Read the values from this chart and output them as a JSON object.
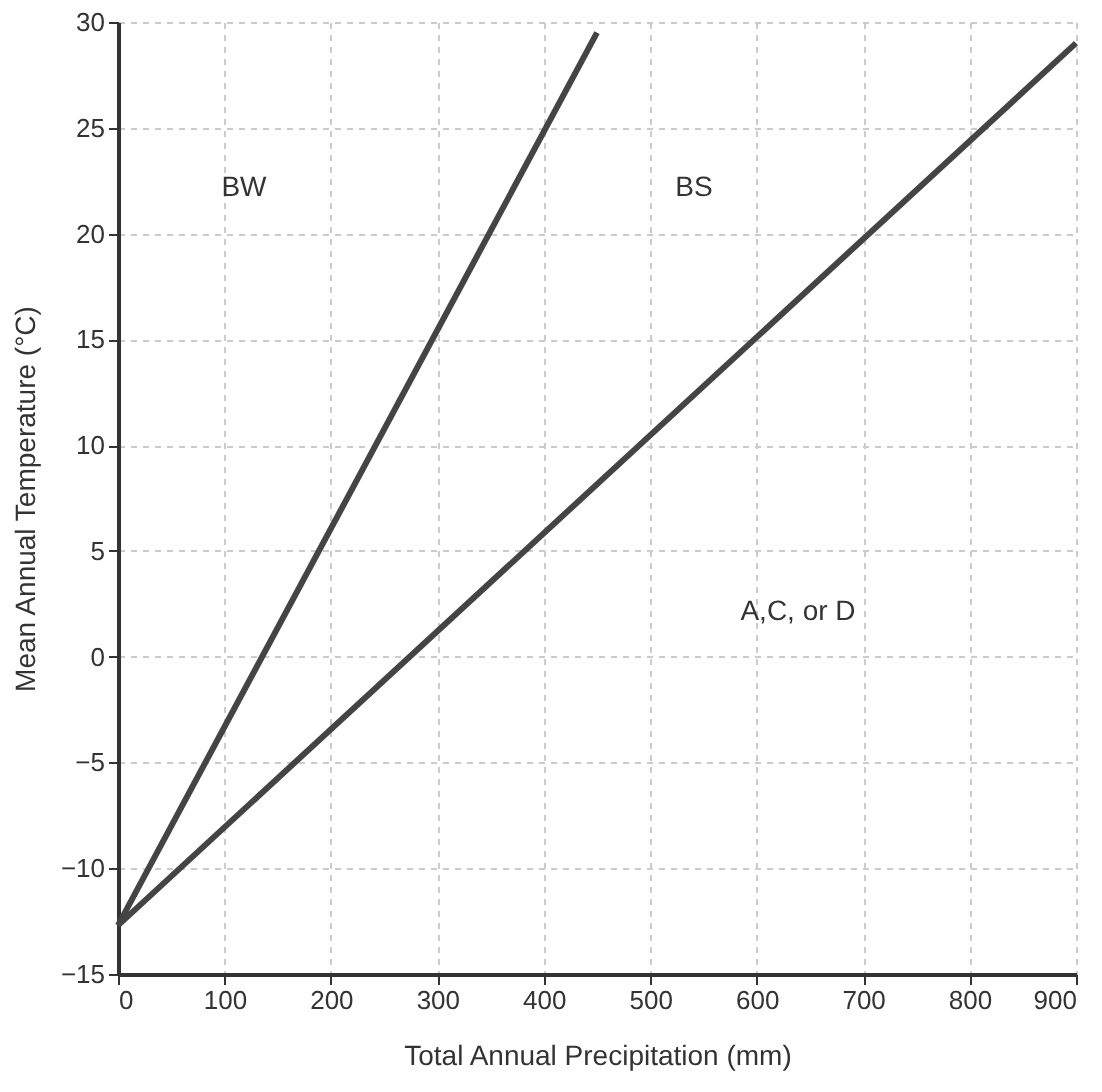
{
  "chart_data": {
    "type": "line",
    "xlabel": "Total Annual Precipitation (mm)",
    "ylabel": "Mean Annual Temperature (°C)",
    "series": [
      {
        "color": "#444444",
        "x": [
          0,
          450
        ],
        "values": [
          -12.7,
          29.5
        ]
      },
      {
        "color": "#444444",
        "x": [
          0,
          900
        ],
        "values": [
          -12.7,
          29
        ]
      }
    ],
    "annotations": [
      "BW",
      "BS",
      "A,C, or D"
    ],
    "xlim": [
      0,
      900
    ],
    "xticks": [
      0,
      100,
      200,
      300,
      400,
      500,
      600,
      700,
      800,
      900
    ],
    "ylim": [
      -15,
      30
    ],
    "yticks": [
      -15,
      -10,
      -5,
      0,
      5,
      10,
      15,
      20,
      25,
      30
    ],
    "grid": true,
    "marker": "none",
    "line_style": "solid"
  }
}
